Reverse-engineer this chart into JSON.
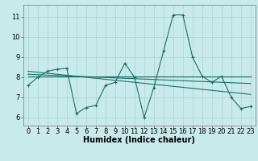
{
  "title": "",
  "xlabel": "Humidex (Indice chaleur)",
  "ylabel": "",
  "bg_color": "#c8eaea",
  "grid_color": "#b0d8d0",
  "line_color": "#1a6e6a",
  "x_data": [
    0,
    1,
    2,
    3,
    4,
    5,
    6,
    7,
    8,
    9,
    10,
    11,
    12,
    13,
    14,
    15,
    16,
    17,
    18,
    19,
    20,
    21,
    22,
    23
  ],
  "y_main": [
    7.6,
    8.0,
    8.3,
    8.4,
    8.45,
    6.2,
    6.5,
    6.6,
    7.6,
    7.75,
    8.7,
    8.0,
    6.0,
    7.5,
    9.3,
    11.1,
    11.1,
    9.0,
    8.05,
    7.75,
    8.05,
    7.0,
    6.45,
    6.55
  ],
  "y_line1": [
    8.05,
    8.05,
    8.05,
    8.05,
    8.05,
    8.05,
    8.05,
    8.05,
    8.05,
    8.05,
    8.05,
    8.05,
    8.05,
    8.05,
    8.05,
    8.05,
    8.05,
    8.05,
    8.05,
    8.05,
    8.05,
    8.05,
    8.05,
    8.05
  ],
  "y_trend": [
    8.3,
    8.25,
    8.2,
    8.15,
    8.1,
    8.05,
    8.0,
    7.95,
    7.9,
    7.85,
    7.8,
    7.75,
    7.7,
    7.65,
    7.6,
    7.55,
    7.5,
    7.45,
    7.4,
    7.35,
    7.3,
    7.25,
    7.2,
    7.15
  ],
  "y_line2": [
    8.15,
    8.13,
    8.11,
    8.09,
    8.07,
    8.05,
    8.03,
    8.01,
    7.99,
    7.97,
    7.95,
    7.93,
    7.91,
    7.89,
    7.87,
    7.85,
    7.83,
    7.81,
    7.79,
    7.77,
    7.75,
    7.73,
    7.71,
    7.69
  ],
  "xlim": [
    -0.5,
    23.5
  ],
  "ylim": [
    5.6,
    11.6
  ],
  "yticks": [
    6,
    7,
    8,
    9,
    10,
    11
  ],
  "xticks": [
    0,
    1,
    2,
    3,
    4,
    5,
    6,
    7,
    8,
    9,
    10,
    11,
    12,
    13,
    14,
    15,
    16,
    17,
    18,
    19,
    20,
    21,
    22,
    23
  ],
  "fontsize_label": 7,
  "fontsize_tick": 6
}
